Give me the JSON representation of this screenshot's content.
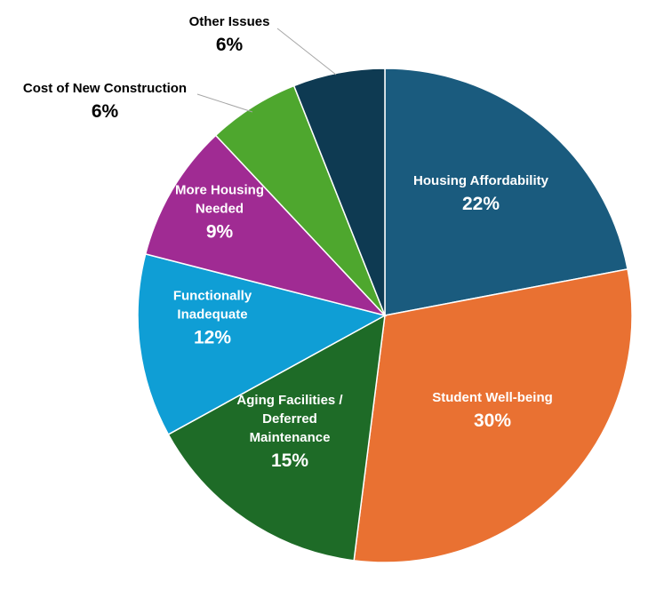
{
  "chart_data": {
    "type": "pie",
    "title": "",
    "start_angle_deg": 0,
    "direction": "clockwise",
    "slices": [
      {
        "label_lines": [
          "Housing Affordability"
        ],
        "value": 22,
        "value_label": "22%",
        "color": "#1a5b7e",
        "label_position": "inside",
        "text_color": "#ffffff"
      },
      {
        "label_lines": [
          "Student Well-being"
        ],
        "value": 30,
        "value_label": "30%",
        "color": "#e97132",
        "label_position": "inside",
        "text_color": "#ffffff"
      },
      {
        "label_lines": [
          "Aging Facilities /",
          "Deferred",
          "Maintenance"
        ],
        "value": 15,
        "value_label": "15%",
        "color": "#1e6b27",
        "label_position": "inside",
        "text_color": "#ffffff"
      },
      {
        "label_lines": [
          "Functionally",
          "Inadequate"
        ],
        "value": 12,
        "value_label": "12%",
        "color": "#0f9ed5",
        "label_position": "inside",
        "text_color": "#ffffff"
      },
      {
        "label_lines": [
          "More Housing",
          "Needed"
        ],
        "value": 9,
        "value_label": "9%",
        "color": "#a02b93",
        "label_position": "inside",
        "text_color": "#ffffff"
      },
      {
        "label_lines": [
          "Cost of New Construction"
        ],
        "value": 6,
        "value_label": "6%",
        "color": "#4ea72e",
        "label_position": "outside",
        "text_color": "#000000"
      },
      {
        "label_lines": [
          "Other Issues"
        ],
        "value": 6,
        "value_label": "6%",
        "color": "#0e3a52",
        "label_position": "outside",
        "text_color": "#000000"
      }
    ],
    "legend": "none"
  }
}
